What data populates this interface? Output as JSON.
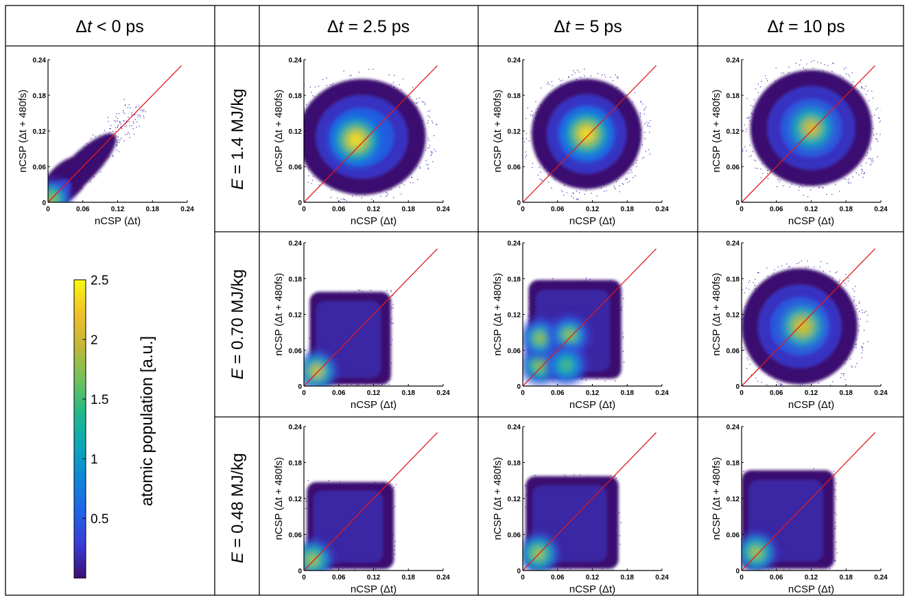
{
  "columns": [
    {
      "prefix": "Δ",
      "var": "t",
      "suffix": " < 0 ps"
    },
    {
      "prefix": "Δ",
      "var": "t",
      "suffix": " = 2.5 ps"
    },
    {
      "prefix": "Δ",
      "var": "t",
      "suffix": " = 5 ps"
    },
    {
      "prefix": "Δ",
      "var": "t",
      "suffix": " = 10 ps"
    }
  ],
  "rows": [
    {
      "var": "E",
      "suffix": " = 1.4 MJ/kg"
    },
    {
      "var": "E",
      "suffix": " = 0.70 MJ/kg"
    },
    {
      "var": "E",
      "suffix": " = 0.48 MJ/kg"
    }
  ],
  "colorbar": {
    "label": "atomic population [a.u.]",
    "ticks": [
      "0.5",
      "1",
      "1.5",
      "2",
      "2.5"
    ],
    "tick_values": [
      0.5,
      1,
      1.5,
      2,
      2.5
    ],
    "range": [
      0,
      2.5
    ],
    "colors": [
      "#3b0f70",
      "#3a3bd6",
      "#1f64e6",
      "#0f86d8",
      "#0ba6b8",
      "#24b98a",
      "#72c05a",
      "#c3b738",
      "#f2c02a",
      "#f9f90e"
    ]
  },
  "chart_data": [
    {
      "type": "heatmap",
      "panel": "Δt < 0 ps",
      "xlabel": "nCSP (Δt)",
      "ylabel": "nCSP (Δt + 480fs)",
      "xlim": [
        0,
        0.24
      ],
      "ylim": [
        0,
        0.24
      ],
      "ticks": [
        "0",
        "0.06",
        "0.12",
        "0.18",
        "0.24"
      ],
      "reference_line": "y = x",
      "cloud": {
        "shape": "diagonal",
        "cx": 0.055,
        "cy": 0.055,
        "extent_x": 0.15,
        "extent_y": 0.15
      },
      "peaks": [
        {
          "x": 0.005,
          "y": 0.005,
          "level": 2.0
        }
      ]
    },
    {
      "type": "heatmap",
      "panel": "E = 1.4 MJ/kg, Δt = 2.5 ps",
      "xlabel": "nCSP (Δt)",
      "ylabel": "nCSP (Δt + 480fs)",
      "xlim": [
        0,
        0.24
      ],
      "ylim": [
        0,
        0.24
      ],
      "ticks": [
        "0",
        "0.06",
        "0.12",
        "0.18",
        "0.24"
      ],
      "reference_line": "y = x",
      "cloud": {
        "shape": "ellipse",
        "cx": 0.1,
        "cy": 0.11,
        "extent_x": 0.11,
        "extent_y": 0.1
      },
      "peaks": [
        {
          "x": 0.09,
          "y": 0.105,
          "level": 2.5
        }
      ]
    },
    {
      "type": "heatmap",
      "panel": "E = 1.4 MJ/kg, Δt = 5 ps",
      "xlabel": "nCSP (Δt)",
      "ylabel": "nCSP (Δt + 480fs)",
      "xlim": [
        0,
        0.24
      ],
      "ylim": [
        0,
        0.24
      ],
      "ticks": [
        "0",
        "0.06",
        "0.12",
        "0.18",
        "0.24"
      ],
      "reference_line": "y = x",
      "cloud": {
        "shape": "ellipse",
        "cx": 0.11,
        "cy": 0.115,
        "extent_x": 0.095,
        "extent_y": 0.095
      },
      "peaks": [
        {
          "x": 0.11,
          "y": 0.115,
          "level": 2.5
        }
      ]
    },
    {
      "type": "heatmap",
      "panel": "E = 1.4 MJ/kg, Δt = 10 ps",
      "xlabel": "nCSP (Δt)",
      "ylabel": "nCSP (Δt + 480fs)",
      "xlim": [
        0,
        0.24
      ],
      "ylim": [
        0,
        0.24
      ],
      "ticks": [
        "0",
        "0.06",
        "0.12",
        "0.18",
        "0.24"
      ],
      "reference_line": "y = x",
      "cloud": {
        "shape": "ellipse",
        "cx": 0.12,
        "cy": 0.125,
        "extent_x": 0.105,
        "extent_y": 0.1
      },
      "peaks": [
        {
          "x": 0.12,
          "y": 0.125,
          "level": 2.2
        }
      ]
    },
    {
      "type": "heatmap",
      "panel": "E = 0.70 MJ/kg, Δt = 2.5 ps",
      "xlabel": "nCSP (Δt)",
      "ylabel": "nCSP (Δt + 480fs)",
      "xlim": [
        0,
        0.24
      ],
      "ylim": [
        0,
        0.24
      ],
      "ticks": [
        "0",
        "0.06",
        "0.12",
        "0.18",
        "0.24"
      ],
      "reference_line": "y = x",
      "cloud": {
        "shape": "square",
        "cx": 0.08,
        "cy": 0.08,
        "extent_x": 0.07,
        "extent_y": 0.08
      },
      "peaks": [
        {
          "x": 0.022,
          "y": 0.025,
          "level": 2.2
        }
      ]
    },
    {
      "type": "heatmap",
      "panel": "E = 0.70 MJ/kg, Δt = 5 ps",
      "xlabel": "nCSP (Δt)",
      "ylabel": "nCSP (Δt + 480fs)",
      "xlim": [
        0,
        0.24
      ],
      "ylim": [
        0,
        0.24
      ],
      "ticks": [
        "0",
        "0.06",
        "0.12",
        "0.18",
        "0.24"
      ],
      "reference_line": "y = x",
      "cloud": {
        "shape": "square",
        "cx": 0.09,
        "cy": 0.095,
        "extent_x": 0.08,
        "extent_y": 0.085
      },
      "peaks": [
        {
          "x": 0.03,
          "y": 0.035,
          "level": 2.0
        },
        {
          "x": 0.03,
          "y": 0.08,
          "level": 1.9
        },
        {
          "x": 0.08,
          "y": 0.085,
          "level": 1.9
        },
        {
          "x": 0.075,
          "y": 0.035,
          "level": 1.7
        }
      ]
    },
    {
      "type": "heatmap",
      "panel": "E = 0.70 MJ/kg, Δt = 10 ps",
      "xlabel": "nCSP (Δt)",
      "ylabel": "nCSP (Δt + 480fs)",
      "xlim": [
        0,
        0.24
      ],
      "ylim": [
        0,
        0.24
      ],
      "ticks": [
        "0",
        "0.06",
        "0.12",
        "0.18",
        "0.24"
      ],
      "reference_line": "y = x",
      "cloud": {
        "shape": "ellipse",
        "cx": 0.1,
        "cy": 0.1,
        "extent_x": 0.1,
        "extent_y": 0.1
      },
      "peaks": [
        {
          "x": 0.105,
          "y": 0.1,
          "level": 2.3
        }
      ]
    },
    {
      "type": "heatmap",
      "panel": "E = 0.48 MJ/kg, Δt = 2.5 ps",
      "xlabel": "nCSP (Δt)",
      "ylabel": "nCSP (Δt + 480fs)",
      "xlim": [
        0,
        0.24
      ],
      "ylim": [
        0,
        0.24
      ],
      "ticks": [
        "0",
        "0.06",
        "0.12",
        "0.18",
        "0.24"
      ],
      "reference_line": "y = x",
      "cloud": {
        "shape": "square",
        "cx": 0.08,
        "cy": 0.075,
        "extent_x": 0.075,
        "extent_y": 0.075
      },
      "peaks": [
        {
          "x": 0.015,
          "y": 0.018,
          "level": 2.1
        }
      ]
    },
    {
      "type": "heatmap",
      "panel": "E = 0.48 MJ/kg, Δt = 5 ps",
      "xlabel": "nCSP (Δt)",
      "ylabel": "nCSP (Δt + 480fs)",
      "xlim": [
        0,
        0.24
      ],
      "ylim": [
        0,
        0.24
      ],
      "ticks": [
        "0",
        "0.06",
        "0.12",
        "0.18",
        "0.24"
      ],
      "reference_line": "y = x",
      "cloud": {
        "shape": "square",
        "cx": 0.085,
        "cy": 0.08,
        "extent_x": 0.08,
        "extent_y": 0.08
      },
      "peaks": [
        {
          "x": 0.027,
          "y": 0.028,
          "level": 2.1
        }
      ]
    },
    {
      "type": "heatmap",
      "panel": "E = 0.48 MJ/kg, Δt = 10 ps",
      "xlabel": "nCSP (Δt)",
      "ylabel": "nCSP (Δt + 480fs)",
      "xlim": [
        0,
        0.24
      ],
      "ylim": [
        0,
        0.24
      ],
      "ticks": [
        "0",
        "0.06",
        "0.12",
        "0.18",
        "0.24"
      ],
      "reference_line": "y = x",
      "cloud": {
        "shape": "square",
        "cx": 0.08,
        "cy": 0.085,
        "extent_x": 0.08,
        "extent_y": 0.085
      },
      "peaks": [
        {
          "x": 0.025,
          "y": 0.03,
          "level": 2.1
        }
      ]
    }
  ]
}
